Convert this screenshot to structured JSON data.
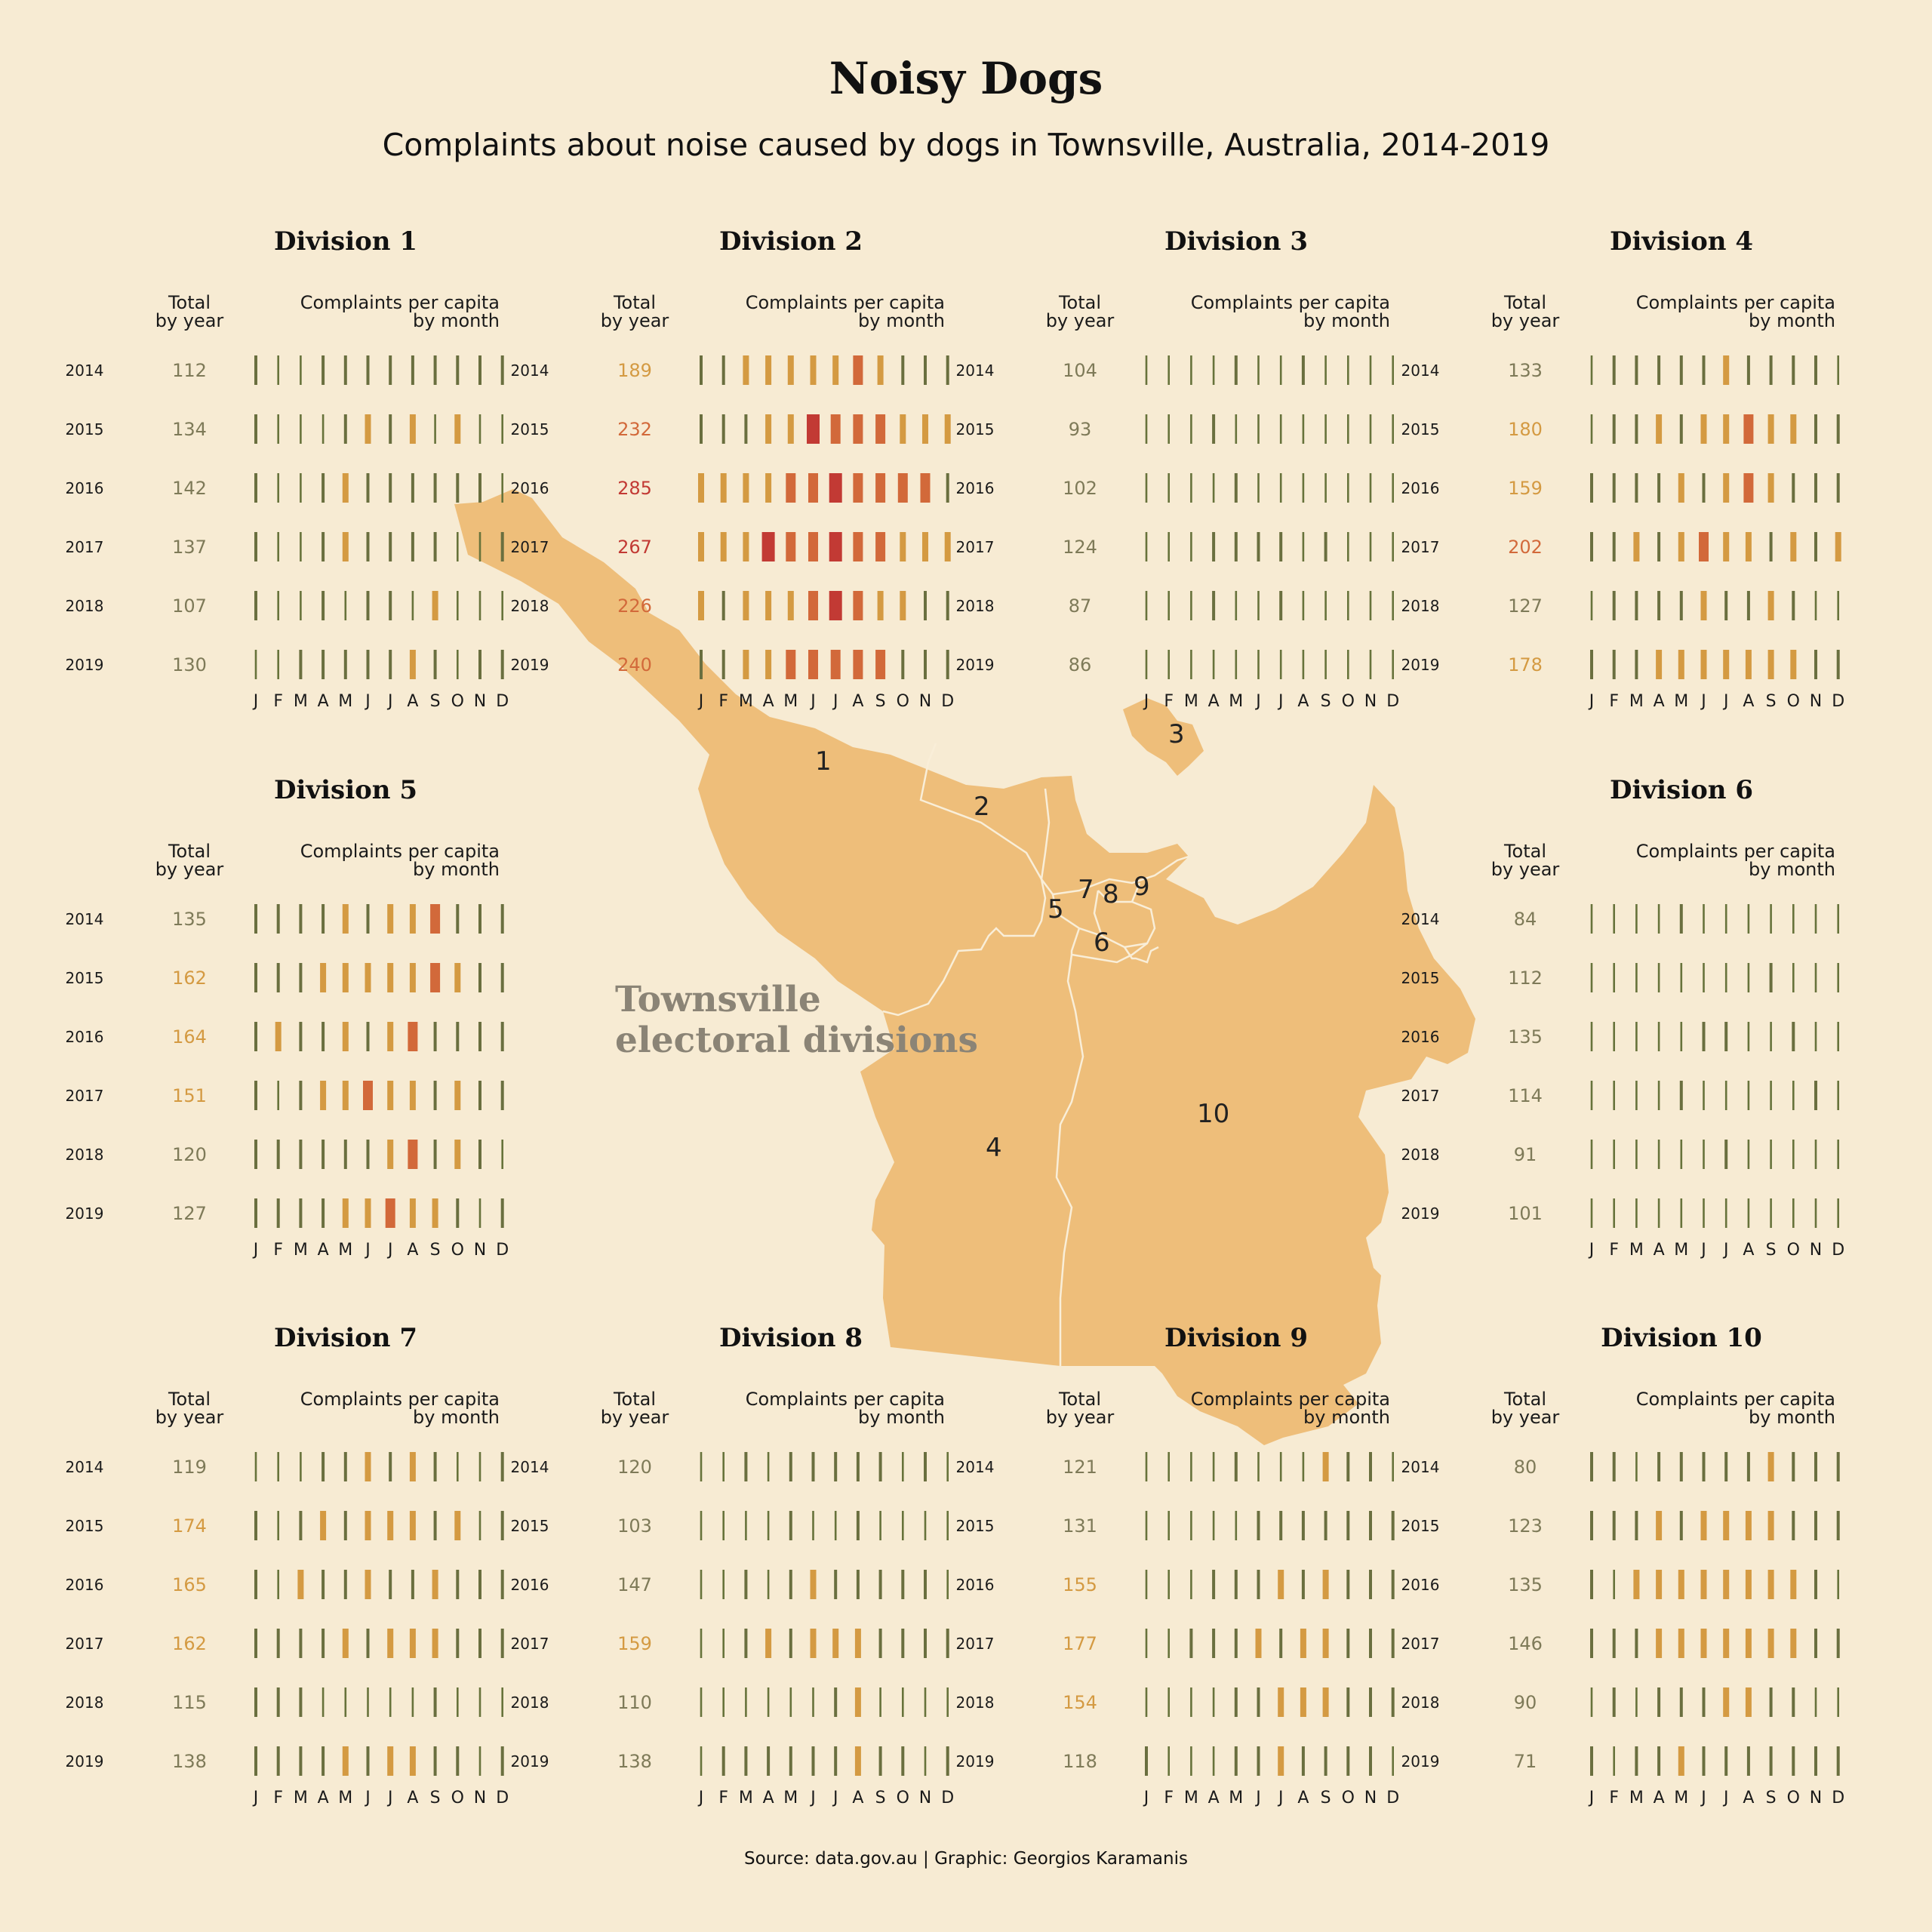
{
  "title": "Noisy Dogs",
  "subtitle": "Complaints about noise caused by dogs in Townsville, Australia, 2014-2019",
  "map_label_line1": "Townsville",
  "map_label_line2": "electoral divisions",
  "source": "Source: data.gov.au | Graphic: Georgios Karamanis",
  "map_numbers": [
    "1",
    "2",
    "3",
    "4",
    "5",
    "6",
    "7",
    "8",
    "9",
    "10"
  ],
  "colors": {
    "background": "#f7ebd3",
    "map_fill": "#eebe7a",
    "map_border": "#f9eed8",
    "text_muted": "#5a5040",
    "scale": [
      "#67733b",
      "#6a6f3f",
      "#d49a42",
      "#d2693a",
      "#c23a34"
    ]
  },
  "chart_data": {
    "type": "small-multiples-bars",
    "column_header_total": "Total\nby year",
    "column_header_monthly": "Complaints per capita\nby month",
    "years": [
      "2014",
      "2015",
      "2016",
      "2017",
      "2018",
      "2019"
    ],
    "months": [
      "J",
      "F",
      "M",
      "A",
      "M",
      "J",
      "J",
      "A",
      "S",
      "O",
      "N",
      "D"
    ],
    "level_scale": "0 = very low, 1 = low, 2 = medium, 3 = high, 4 = very high (bar width and color)",
    "divisions": [
      {
        "name": "Division 1",
        "totals": [
          112,
          134,
          142,
          137,
          107,
          130
        ],
        "levels": [
          [
            1,
            0,
            0,
            1,
            1,
            1,
            1,
            1,
            1,
            1,
            1,
            1
          ],
          [
            1,
            0,
            0,
            0,
            1,
            2,
            1,
            2,
            0,
            2,
            0,
            0
          ],
          [
            1,
            0,
            0,
            1,
            2,
            1,
            1,
            1,
            1,
            1,
            1,
            0
          ],
          [
            1,
            0,
            0,
            1,
            2,
            1,
            1,
            1,
            1,
            0,
            0,
            1
          ],
          [
            1,
            0,
            0,
            1,
            0,
            1,
            1,
            0,
            2,
            0,
            0,
            0
          ],
          [
            0,
            0,
            1,
            1,
            1,
            1,
            1,
            2,
            1,
            0,
            1,
            1
          ]
        ]
      },
      {
        "name": "Division 2",
        "totals": [
          189,
          232,
          285,
          267,
          226,
          240
        ],
        "levels": [
          [
            1,
            1,
            2,
            2,
            2,
            2,
            2,
            3,
            2,
            1,
            1,
            1
          ],
          [
            1,
            1,
            1,
            2,
            2,
            4,
            3,
            3,
            3,
            2,
            2,
            2
          ],
          [
            2,
            2,
            2,
            2,
            3,
            3,
            4,
            3,
            3,
            3,
            3,
            1
          ],
          [
            2,
            2,
            2,
            4,
            3,
            3,
            4,
            3,
            3,
            2,
            2,
            2
          ],
          [
            2,
            1,
            2,
            2,
            2,
            3,
            4,
            3,
            2,
            2,
            1,
            1
          ],
          [
            1,
            1,
            2,
            2,
            3,
            3,
            3,
            3,
            3,
            1,
            1,
            1
          ]
        ]
      },
      {
        "name": "Division 3",
        "totals": [
          104,
          93,
          102,
          124,
          87,
          86
        ],
        "levels": [
          [
            0,
            0,
            0,
            0,
            1,
            0,
            0,
            1,
            0,
            0,
            0,
            0
          ],
          [
            0,
            0,
            0,
            1,
            0,
            0,
            0,
            0,
            0,
            0,
            0,
            0
          ],
          [
            0,
            0,
            0,
            0,
            1,
            0,
            0,
            0,
            0,
            0,
            0,
            0
          ],
          [
            0,
            0,
            0,
            1,
            1,
            1,
            1,
            0,
            1,
            0,
            0,
            0
          ],
          [
            0,
            0,
            0,
            1,
            0,
            0,
            1,
            0,
            0,
            0,
            0,
            0
          ],
          [
            0,
            0,
            0,
            0,
            0,
            0,
            0,
            0,
            0,
            0,
            0,
            0
          ]
        ]
      },
      {
        "name": "Division 4",
        "totals": [
          133,
          180,
          159,
          202,
          127,
          178
        ],
        "levels": [
          [
            0,
            1,
            1,
            1,
            1,
            1,
            2,
            1,
            1,
            1,
            1,
            0
          ],
          [
            0,
            1,
            1,
            2,
            1,
            2,
            2,
            3,
            2,
            2,
            1,
            1
          ],
          [
            1,
            1,
            1,
            1,
            2,
            1,
            2,
            3,
            2,
            1,
            1,
            1
          ],
          [
            1,
            1,
            2,
            1,
            2,
            3,
            2,
            2,
            1,
            2,
            1,
            2
          ],
          [
            0,
            1,
            1,
            1,
            1,
            2,
            1,
            1,
            2,
            1,
            0,
            0
          ],
          [
            1,
            1,
            1,
            2,
            2,
            2,
            2,
            2,
            2,
            2,
            1,
            1
          ]
        ]
      },
      {
        "name": "Division 5",
        "totals": [
          135,
          162,
          164,
          151,
          120,
          127
        ],
        "levels": [
          [
            1,
            1,
            1,
            1,
            2,
            1,
            2,
            2,
            3,
            1,
            1,
            1
          ],
          [
            1,
            1,
            1,
            2,
            2,
            2,
            2,
            2,
            3,
            2,
            1,
            1
          ],
          [
            1,
            2,
            1,
            1,
            2,
            1,
            2,
            3,
            1,
            1,
            1,
            1
          ],
          [
            1,
            0,
            1,
            2,
            2,
            3,
            2,
            2,
            1,
            2,
            1,
            1
          ],
          [
            1,
            1,
            1,
            1,
            1,
            1,
            2,
            3,
            1,
            2,
            1,
            0
          ],
          [
            1,
            1,
            1,
            1,
            2,
            2,
            3,
            2,
            2,
            1,
            0,
            1
          ]
        ]
      },
      {
        "name": "Division 6",
        "totals": [
          84,
          112,
          135,
          114,
          91,
          101
        ],
        "levels": [
          [
            0,
            0,
            0,
            0,
            1,
            0,
            0,
            0,
            0,
            0,
            0,
            0
          ],
          [
            0,
            0,
            0,
            0,
            0,
            0,
            0,
            0,
            1,
            0,
            0,
            0
          ],
          [
            0,
            0,
            0,
            0,
            0,
            1,
            1,
            0,
            0,
            1,
            0,
            0
          ],
          [
            0,
            0,
            0,
            0,
            1,
            0,
            0,
            0,
            0,
            0,
            1,
            0
          ],
          [
            0,
            0,
            0,
            0,
            0,
            0,
            1,
            0,
            0,
            0,
            0,
            0
          ],
          [
            0,
            0,
            0,
            0,
            0,
            0,
            0,
            0,
            0,
            0,
            0,
            0
          ]
        ]
      },
      {
        "name": "Division 7",
        "totals": [
          119,
          174,
          165,
          162,
          115,
          138
        ],
        "levels": [
          [
            0,
            0,
            0,
            1,
            1,
            2,
            1,
            2,
            1,
            0,
            0,
            1
          ],
          [
            1,
            0,
            1,
            2,
            1,
            2,
            2,
            2,
            1,
            2,
            0,
            1
          ],
          [
            1,
            0,
            2,
            1,
            1,
            2,
            1,
            1,
            2,
            1,
            1,
            1
          ],
          [
            1,
            1,
            1,
            1,
            2,
            1,
            2,
            2,
            2,
            1,
            1,
            1
          ],
          [
            1,
            1,
            1,
            0,
            0,
            0,
            0,
            0,
            1,
            0,
            0,
            0
          ],
          [
            1,
            1,
            1,
            1,
            2,
            1,
            2,
            2,
            1,
            1,
            0,
            1
          ]
        ]
      },
      {
        "name": "Division 8",
        "totals": [
          120,
          103,
          147,
          159,
          110,
          138
        ],
        "levels": [
          [
            0,
            0,
            1,
            0,
            1,
            1,
            1,
            1,
            1,
            0,
            1,
            0
          ],
          [
            0,
            0,
            0,
            0,
            1,
            0,
            0,
            1,
            0,
            0,
            0,
            0
          ],
          [
            0,
            0,
            1,
            0,
            1,
            2,
            1,
            1,
            1,
            1,
            1,
            0
          ],
          [
            0,
            0,
            1,
            2,
            1,
            2,
            2,
            2,
            1,
            1,
            1,
            1
          ],
          [
            0,
            0,
            0,
            0,
            0,
            0,
            1,
            2,
            0,
            0,
            0,
            0
          ],
          [
            0,
            1,
            1,
            1,
            1,
            1,
            1,
            2,
            1,
            1,
            0,
            1
          ]
        ]
      },
      {
        "name": "Division 9",
        "totals": [
          121,
          131,
          155,
          177,
          154,
          118
        ],
        "levels": [
          [
            0,
            0,
            0,
            0,
            1,
            0,
            0,
            0,
            2,
            1,
            1,
            0
          ],
          [
            0,
            0,
            0,
            0,
            0,
            1,
            1,
            1,
            1,
            1,
            1,
            1
          ],
          [
            0,
            0,
            0,
            1,
            1,
            1,
            2,
            1,
            2,
            1,
            1,
            1
          ],
          [
            0,
            0,
            1,
            1,
            1,
            2,
            1,
            2,
            2,
            1,
            1,
            1
          ],
          [
            0,
            0,
            0,
            0,
            1,
            1,
            2,
            2,
            2,
            1,
            1,
            1
          ],
          [
            1,
            0,
            0,
            0,
            1,
            1,
            2,
            1,
            1,
            1,
            1,
            0
          ]
        ]
      },
      {
        "name": "Division 10",
        "totals": [
          80,
          123,
          135,
          146,
          90,
          71
        ],
        "levels": [
          [
            1,
            1,
            0,
            1,
            1,
            1,
            1,
            1,
            2,
            1,
            1,
            1
          ],
          [
            1,
            1,
            1,
            2,
            1,
            2,
            2,
            2,
            2,
            1,
            1,
            1
          ],
          [
            1,
            0,
            2,
            2,
            2,
            2,
            2,
            2,
            2,
            2,
            1,
            0
          ],
          [
            1,
            1,
            1,
            2,
            2,
            2,
            2,
            2,
            2,
            2,
            1,
            1
          ],
          [
            0,
            1,
            0,
            1,
            1,
            1,
            2,
            2,
            1,
            1,
            0,
            0
          ],
          [
            1,
            0,
            1,
            1,
            2,
            1,
            1,
            1,
            1,
            1,
            1,
            1
          ]
        ]
      }
    ]
  }
}
